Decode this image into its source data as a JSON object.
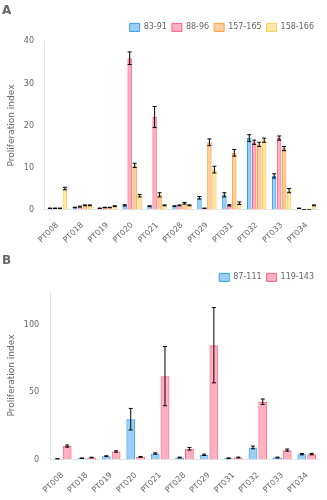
{
  "chart_data": [
    {
      "type": "bar",
      "title": "A",
      "ylabel": "Proliferation index",
      "categories": [
        "PT008",
        "PT018",
        "PT019",
        "PT020",
        "PT021",
        "PT028",
        "PT029",
        "PT031",
        "PT032",
        "PT033",
        "PT034"
      ],
      "series": [
        {
          "name": "83-91",
          "values": [
            0.3,
            0.5,
            0.3,
            1.0,
            0.8,
            0.8,
            2.8,
            3.5,
            17.0,
            8.0,
            0.3
          ],
          "errors": [
            0.05,
            0.05,
            0.05,
            0.15,
            0.1,
            0.1,
            0.3,
            0.5,
            0.8,
            0.5,
            0.05
          ]
        },
        {
          "name": "88-96",
          "values": [
            0.3,
            0.7,
            0.5,
            36.0,
            22.0,
            1.0,
            0.3,
            1.0,
            16.0,
            17.0,
            0.0
          ],
          "errors": [
            0.05,
            0.1,
            0.05,
            1.5,
            2.5,
            0.1,
            0.05,
            0.15,
            0.5,
            0.5,
            0.0
          ]
        },
        {
          "name": "157-165",
          "values": [
            0.3,
            1.0,
            0.5,
            10.5,
            3.5,
            1.5,
            16.0,
            13.5,
            15.5,
            14.5,
            0.0
          ],
          "errors": [
            0.05,
            0.1,
            0.05,
            0.5,
            0.5,
            0.2,
            0.8,
            0.8,
            0.5,
            0.5,
            0.0
          ]
        },
        {
          "name": "158-166",
          "values": [
            5.0,
            1.0,
            0.8,
            3.3,
            1.0,
            1.0,
            9.5,
            1.5,
            16.5,
            4.5,
            1.0
          ],
          "errors": [
            0.3,
            0.1,
            0.1,
            0.3,
            0.1,
            0.1,
            0.8,
            0.3,
            0.5,
            0.5,
            0.1
          ]
        }
      ],
      "ylim": [
        0,
        40
      ],
      "yticks": [
        0,
        10,
        20,
        30,
        40
      ],
      "grid": false,
      "legend": "upper right"
    },
    {
      "type": "bar",
      "title": "B",
      "ylabel": "Proliferation index",
      "categories": [
        "PT008",
        "PT018",
        "PT019",
        "PT020",
        "PT021",
        "PT028",
        "PT029",
        "PT031",
        "PT032",
        "PT033",
        "PT034"
      ],
      "series": [
        {
          "name": "87-111",
          "values": [
            0.5,
            1.0,
            2.5,
            30.0,
            4.5,
            1.5,
            3.5,
            1.0,
            9.0,
            1.5,
            4.0
          ],
          "errors": [
            0.1,
            0.2,
            0.3,
            8.0,
            0.5,
            0.3,
            0.5,
            0.2,
            1.0,
            0.3,
            0.5
          ]
        },
        {
          "name": "119-143",
          "values": [
            10.0,
            1.5,
            6.0,
            2.0,
            62.0,
            8.0,
            85.0,
            1.5,
            43.0,
            7.0,
            4.0
          ],
          "errors": [
            0.8,
            0.2,
            0.5,
            0.3,
            22.0,
            1.0,
            28.0,
            0.3,
            2.0,
            0.8,
            0.5
          ]
        }
      ],
      "ylim": [
        0,
        125
      ],
      "yticks": [
        0,
        50,
        100
      ],
      "grid": false,
      "legend": "upper right"
    }
  ]
}
